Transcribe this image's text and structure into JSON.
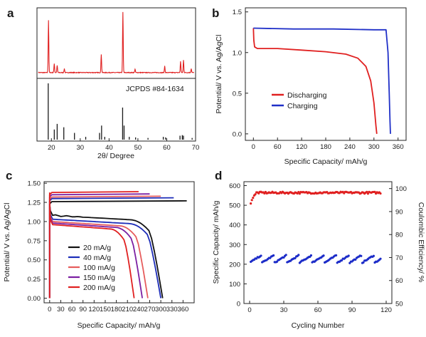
{
  "chart_data": [
    {
      "panel": "a",
      "type": "line",
      "xlabel": "2θ/ Degree",
      "ylabel": "",
      "xlim": [
        15,
        70
      ],
      "xticks": [
        20,
        30,
        40,
        50,
        60,
        70
      ],
      "grid": false,
      "annotations": [
        "JCPDS #84-1634"
      ],
      "series": [
        {
          "role": "measured pattern",
          "color": "#e02020",
          "baseline": 0.04,
          "peaks": [
            {
              "x": 19.0,
              "y": 0.8
            },
            {
              "x": 21.0,
              "y": 0.14
            },
            {
              "x": 22.0,
              "y": 0.11
            },
            {
              "x": 24.5,
              "y": 0.06
            },
            {
              "x": 37.3,
              "y": 0.28
            },
            {
              "x": 44.8,
              "y": 0.92
            },
            {
              "x": 49.0,
              "y": 0.05
            },
            {
              "x": 59.3,
              "y": 0.1
            },
            {
              "x": 64.8,
              "y": 0.17
            },
            {
              "x": 65.8,
              "y": 0.19
            },
            {
              "x": 68.5,
              "y": 0.06
            }
          ]
        },
        {
          "role": "reference sticks",
          "color": "#1a1a1a",
          "sticks": [
            {
              "x": 18.9,
              "y": 1.0
            },
            {
              "x": 21.0,
              "y": 0.18
            },
            {
              "x": 22.0,
              "y": 0.28
            },
            {
              "x": 24.3,
              "y": 0.22
            },
            {
              "x": 28.0,
              "y": 0.12
            },
            {
              "x": 31.9,
              "y": 0.05
            },
            {
              "x": 36.7,
              "y": 0.12
            },
            {
              "x": 37.4,
              "y": 0.25
            },
            {
              "x": 38.5,
              "y": 0.05
            },
            {
              "x": 44.7,
              "y": 0.57
            },
            {
              "x": 45.2,
              "y": 0.25
            },
            {
              "x": 47.0,
              "y": 0.05
            },
            {
              "x": 49.2,
              "y": 0.04
            },
            {
              "x": 53.5,
              "y": 0.03
            },
            {
              "x": 58.8,
              "y": 0.05
            },
            {
              "x": 59.6,
              "y": 0.04
            },
            {
              "x": 64.6,
              "y": 0.07
            },
            {
              "x": 65.4,
              "y": 0.08
            },
            {
              "x": 65.8,
              "y": 0.07
            },
            {
              "x": 68.8,
              "y": 0.03
            }
          ]
        }
      ]
    },
    {
      "panel": "b",
      "type": "line",
      "xlabel": "Specific Capacity/ mAh/g",
      "ylabel": "Potential/ V vs. Ag/AgCl",
      "xlim": [
        -20,
        380
      ],
      "ylim": [
        -0.08,
        1.55
      ],
      "xticks": [
        0,
        60,
        120,
        180,
        240,
        300,
        360
      ],
      "yticks": [
        0.0,
        0.5,
        1.0,
        1.5
      ],
      "legend_position": "center-right",
      "grid": false,
      "series": [
        {
          "name": "Discharging",
          "color": "#e02020",
          "points": [
            [
              0,
              1.3
            ],
            [
              1,
              1.15
            ],
            [
              3,
              1.07
            ],
            [
              10,
              1.05
            ],
            [
              60,
              1.05
            ],
            [
              120,
              1.03
            ],
            [
              180,
              1.01
            ],
            [
              230,
              0.98
            ],
            [
              260,
              0.93
            ],
            [
              280,
              0.83
            ],
            [
              292,
              0.65
            ],
            [
              300,
              0.38
            ],
            [
              305,
              0.1
            ],
            [
              307,
              0.0
            ]
          ]
        },
        {
          "name": "Charging",
          "color": "#2030c8",
          "points": [
            [
              0,
              1.3
            ],
            [
              100,
              1.29
            ],
            [
              200,
              1.29
            ],
            [
              300,
              1.28
            ],
            [
              330,
              1.28
            ],
            [
              335,
              1.0
            ],
            [
              338,
              0.5
            ],
            [
              340,
              0.15
            ],
            [
              341,
              0.0
            ]
          ]
        }
      ]
    },
    {
      "panel": "c",
      "type": "line",
      "xlabel": "Specific Capacity/ mAh/g",
      "ylabel": "Potential/ V vs. Ag/AgCl",
      "xlim": [
        -15,
        390
      ],
      "ylim": [
        -0.06,
        1.52
      ],
      "xticks": [
        0,
        30,
        60,
        90,
        120,
        150,
        180,
        210,
        240,
        270,
        300,
        330,
        360
      ],
      "yticks": [
        0.0,
        0.25,
        0.5,
        0.75,
        1.0,
        1.25,
        1.5
      ],
      "legend_position": "bottom-left",
      "grid": false,
      "series": [
        {
          "name": "20 mA/g",
          "color": "#111111",
          "discharge_capacity": 305,
          "charge_capacity": 370,
          "plateau": 1.08,
          "charge_voltage": 1.26
        },
        {
          "name": "40 mA/g",
          "color": "#1c2cb8",
          "discharge_capacity": 300,
          "charge_capacity": 335,
          "plateau": 1.03,
          "charge_voltage": 1.3
        },
        {
          "name": "100 mA/g",
          "color": "#e65c5c",
          "discharge_capacity": 265,
          "charge_capacity": 300,
          "plateau": 1.0,
          "charge_voltage": 1.32
        },
        {
          "name": "150 mA/g",
          "color": "#7b1fa2",
          "discharge_capacity": 250,
          "charge_capacity": 270,
          "plateau": 0.98,
          "charge_voltage": 1.35
        },
        {
          "name": "200 mA/g",
          "color": "#e02020",
          "discharge_capacity": 228,
          "charge_capacity": 240,
          "plateau": 0.96,
          "charge_voltage": 1.38
        }
      ]
    },
    {
      "panel": "d",
      "type": "scatter",
      "xlabel": "Cycling Number",
      "ylabel": "Specific Capacity/ mAh/g",
      "ylabel_right": "Coulombic Efficiency/ %",
      "xlim": [
        -5,
        125
      ],
      "ylim": [
        0,
        620
      ],
      "ylim_right": [
        50,
        103
      ],
      "xticks": [
        0,
        30,
        60,
        90,
        120
      ],
      "yticks": [
        0,
        100,
        200,
        300,
        400,
        500,
        600
      ],
      "yticks_right": [
        50,
        60,
        70,
        80,
        90,
        100
      ],
      "grid": false,
      "series": [
        {
          "role": "capacity",
          "color": "#1c2cc8",
          "axis": "left",
          "x_range": [
            1,
            115
          ],
          "mean": 228,
          "spread": 25
        },
        {
          "role": "coulombic efficiency",
          "color": "#e02020",
          "axis": "right",
          "x_range": [
            1,
            115
          ],
          "first_values": [
            93.5,
            95,
            96,
            97,
            97.5
          ],
          "mean": 98.2,
          "spread": 0.8
        }
      ]
    }
  ]
}
